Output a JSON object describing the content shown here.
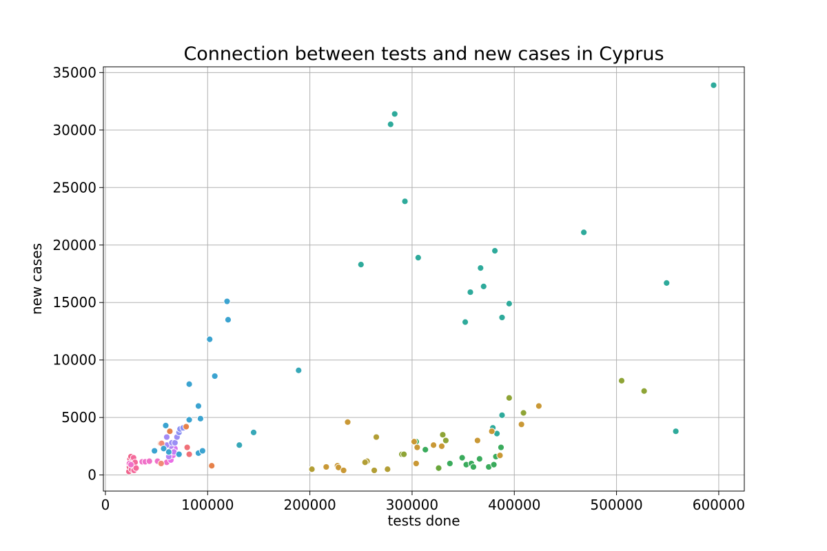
{
  "chart_data": {
    "type": "scatter",
    "title": "Connection between tests and new cases in Cyprus",
    "xlabel": "tests done",
    "ylabel": "new cases",
    "xlim": [
      -2000,
      625000
    ],
    "ylim": [
      -1400,
      35500
    ],
    "xticks": [
      0,
      100000,
      200000,
      300000,
      400000,
      500000,
      600000
    ],
    "xtick_labels": [
      "0",
      "100000",
      "200000",
      "300000",
      "400000",
      "500000",
      "600000"
    ],
    "yticks": [
      0,
      5000,
      10000,
      15000,
      20000,
      25000,
      30000,
      35000
    ],
    "ytick_labels": [
      "0",
      "5000",
      "10000",
      "15000",
      "20000",
      "25000",
      "30000",
      "35000"
    ],
    "grid": true,
    "points": [
      {
        "x": 23000,
        "y": 300,
        "color": "#f0648c"
      },
      {
        "x": 23500,
        "y": 700,
        "color": "#f0648c"
      },
      {
        "x": 24000,
        "y": 1000,
        "color": "#f0648c"
      },
      {
        "x": 24000,
        "y": 1400,
        "color": "#f0648c"
      },
      {
        "x": 25000,
        "y": 1600,
        "color": "#f0648c"
      },
      {
        "x": 25500,
        "y": 500,
        "color": "#f46a9b"
      },
      {
        "x": 26000,
        "y": 1200,
        "color": "#f46a9b"
      },
      {
        "x": 27000,
        "y": 800,
        "color": "#f46a9b"
      },
      {
        "x": 27500,
        "y": 1500,
        "color": "#f46a9b"
      },
      {
        "x": 28000,
        "y": 400,
        "color": "#f46a9b"
      },
      {
        "x": 29000,
        "y": 1100,
        "color": "#f46a9b"
      },
      {
        "x": 30000,
        "y": 600,
        "color": "#f46a9b"
      },
      {
        "x": 23500,
        "y": 1000,
        "color": "#f070c8"
      },
      {
        "x": 25000,
        "y": 900,
        "color": "#f070c8"
      },
      {
        "x": 36000,
        "y": 1150,
        "color": "#f070c8"
      },
      {
        "x": 39000,
        "y": 1150,
        "color": "#f070c8"
      },
      {
        "x": 43000,
        "y": 1200,
        "color": "#f070c8"
      },
      {
        "x": 51000,
        "y": 1200,
        "color": "#f070c8"
      },
      {
        "x": 55000,
        "y": 1000,
        "color": "#f070c8"
      },
      {
        "x": 60000,
        "y": 1100,
        "color": "#f070c8"
      },
      {
        "x": 64000,
        "y": 1300,
        "color": "#e96ee6"
      },
      {
        "x": 66000,
        "y": 1700,
        "color": "#e96ee6"
      },
      {
        "x": 68000,
        "y": 2300,
        "color": "#d575f0"
      },
      {
        "x": 67000,
        "y": 2000,
        "color": "#c57cf2"
      },
      {
        "x": 64000,
        "y": 2500,
        "color": "#b383f4"
      },
      {
        "x": 62000,
        "y": 1600,
        "color": "#b383f4"
      },
      {
        "x": 60000,
        "y": 3300,
        "color": "#a38af5"
      },
      {
        "x": 60000,
        "y": 2600,
        "color": "#a38af5"
      },
      {
        "x": 65000,
        "y": 2800,
        "color": "#9a8ef5"
      },
      {
        "x": 68000,
        "y": 2800,
        "color": "#9a8ef5"
      },
      {
        "x": 70000,
        "y": 3300,
        "color": "#9a8ef5"
      },
      {
        "x": 72000,
        "y": 3700,
        "color": "#8d92f4"
      },
      {
        "x": 73000,
        "y": 4000,
        "color": "#8d92f4"
      },
      {
        "x": 76000,
        "y": 4100,
        "color": "#8d92f4"
      },
      {
        "x": 63000,
        "y": 3800,
        "color": "#e6814a"
      },
      {
        "x": 79000,
        "y": 4200,
        "color": "#e6814a"
      },
      {
        "x": 54000,
        "y": 2750,
        "color": "#e6814a"
      },
      {
        "x": 55000,
        "y": 2750,
        "color": "#f08a76"
      },
      {
        "x": 54500,
        "y": 1000,
        "color": "#f08a76"
      },
      {
        "x": 80000,
        "y": 2400,
        "color": "#f07078"
      },
      {
        "x": 82000,
        "y": 1800,
        "color": "#f07078"
      },
      {
        "x": 104000,
        "y": 800,
        "color": "#e6814a"
      },
      {
        "x": 59000,
        "y": 4300,
        "color": "#3ba3d0"
      },
      {
        "x": 48000,
        "y": 2100,
        "color": "#3ba3d0"
      },
      {
        "x": 57000,
        "y": 2300,
        "color": "#3ba3d0"
      },
      {
        "x": 62000,
        "y": 2000,
        "color": "#3ba3d0"
      },
      {
        "x": 72000,
        "y": 1800,
        "color": "#3ba3d0"
      },
      {
        "x": 82000,
        "y": 4800,
        "color": "#3ba3d0"
      },
      {
        "x": 82000,
        "y": 7900,
        "color": "#3ba3d0"
      },
      {
        "x": 91000,
        "y": 6000,
        "color": "#3ba3d0"
      },
      {
        "x": 93000,
        "y": 4900,
        "color": "#3ba3d0"
      },
      {
        "x": 91000,
        "y": 1900,
        "color": "#3ba3d0"
      },
      {
        "x": 95000,
        "y": 2100,
        "color": "#3ba3d0"
      },
      {
        "x": 102000,
        "y": 11800,
        "color": "#3ba3d0"
      },
      {
        "x": 107000,
        "y": 8600,
        "color": "#3ba3d0"
      },
      {
        "x": 119000,
        "y": 15100,
        "color": "#3ba3d0"
      },
      {
        "x": 120000,
        "y": 13500,
        "color": "#3ba3d0"
      },
      {
        "x": 131000,
        "y": 2600,
        "color": "#37a8b8"
      },
      {
        "x": 145000,
        "y": 3700,
        "color": "#37a8b8"
      },
      {
        "x": 189000,
        "y": 9100,
        "color": "#37a8b8"
      },
      {
        "x": 250000,
        "y": 18300,
        "color": "#2eaa9b"
      },
      {
        "x": 279000,
        "y": 30500,
        "color": "#2eaa9b"
      },
      {
        "x": 283000,
        "y": 31400,
        "color": "#2eaa9b"
      },
      {
        "x": 293000,
        "y": 23800,
        "color": "#2eaa9b"
      },
      {
        "x": 306000,
        "y": 18900,
        "color": "#2eaa9b"
      },
      {
        "x": 352000,
        "y": 13300,
        "color": "#2eaa9b"
      },
      {
        "x": 357000,
        "y": 15900,
        "color": "#2eaa9b"
      },
      {
        "x": 367000,
        "y": 18000,
        "color": "#2eaa9b"
      },
      {
        "x": 370000,
        "y": 16400,
        "color": "#2eaa9b"
      },
      {
        "x": 381000,
        "y": 19500,
        "color": "#2eaa9b"
      },
      {
        "x": 388000,
        "y": 13700,
        "color": "#2eaa9b"
      },
      {
        "x": 395000,
        "y": 14900,
        "color": "#2eaa9b"
      },
      {
        "x": 468000,
        "y": 21100,
        "color": "#2eaa9b"
      },
      {
        "x": 549000,
        "y": 16700,
        "color": "#2eaa9b"
      },
      {
        "x": 595000,
        "y": 33900,
        "color": "#2eaa9b"
      },
      {
        "x": 379000,
        "y": 4100,
        "color": "#2eaa9b"
      },
      {
        "x": 383000,
        "y": 3600,
        "color": "#2eaa9b"
      },
      {
        "x": 388000,
        "y": 5200,
        "color": "#2eaa9b"
      },
      {
        "x": 558000,
        "y": 3800,
        "color": "#2eaa9b"
      },
      {
        "x": 304000,
        "y": 2900,
        "color": "#3aab5c"
      },
      {
        "x": 313000,
        "y": 2200,
        "color": "#3aab5c"
      },
      {
        "x": 337000,
        "y": 1000,
        "color": "#3aab5c"
      },
      {
        "x": 349000,
        "y": 1500,
        "color": "#3aab5c"
      },
      {
        "x": 353000,
        "y": 900,
        "color": "#3aab5c"
      },
      {
        "x": 358000,
        "y": 1000,
        "color": "#3aab5c"
      },
      {
        "x": 360000,
        "y": 700,
        "color": "#3aab5c"
      },
      {
        "x": 366000,
        "y": 1400,
        "color": "#3aab5c"
      },
      {
        "x": 375000,
        "y": 700,
        "color": "#3aab5c"
      },
      {
        "x": 380000,
        "y": 900,
        "color": "#3aab5c"
      },
      {
        "x": 382000,
        "y": 1600,
        "color": "#3aab5c"
      },
      {
        "x": 387000,
        "y": 2400,
        "color": "#3aab5c"
      },
      {
        "x": 326000,
        "y": 600,
        "color": "#69a63a"
      },
      {
        "x": 290000,
        "y": 1800,
        "color": "#8ea436"
      },
      {
        "x": 292000,
        "y": 1800,
        "color": "#8ea436"
      },
      {
        "x": 330000,
        "y": 3500,
        "color": "#8ea436"
      },
      {
        "x": 333000,
        "y": 3000,
        "color": "#8ea436"
      },
      {
        "x": 395000,
        "y": 6700,
        "color": "#8ea436"
      },
      {
        "x": 409000,
        "y": 5400,
        "color": "#8ea436"
      },
      {
        "x": 505000,
        "y": 8200,
        "color": "#8ea436"
      },
      {
        "x": 527000,
        "y": 7300,
        "color": "#8ea436"
      },
      {
        "x": 256000,
        "y": 1200,
        "color": "#b29e35"
      },
      {
        "x": 254000,
        "y": 1100,
        "color": "#b29e35"
      },
      {
        "x": 265000,
        "y": 3300,
        "color": "#b29e35"
      },
      {
        "x": 263000,
        "y": 400,
        "color": "#b29e35"
      },
      {
        "x": 276000,
        "y": 500,
        "color": "#b29e35"
      },
      {
        "x": 202000,
        "y": 500,
        "color": "#b29e35"
      },
      {
        "x": 237000,
        "y": 4600,
        "color": "#c99835"
      },
      {
        "x": 216000,
        "y": 700,
        "color": "#c99835"
      },
      {
        "x": 227000,
        "y": 800,
        "color": "#c99835"
      },
      {
        "x": 228000,
        "y": 650,
        "color": "#c99835"
      },
      {
        "x": 233000,
        "y": 400,
        "color": "#c99835"
      },
      {
        "x": 302000,
        "y": 2900,
        "color": "#c99835"
      },
      {
        "x": 305000,
        "y": 2400,
        "color": "#c99835"
      },
      {
        "x": 304000,
        "y": 1000,
        "color": "#c99835"
      },
      {
        "x": 321000,
        "y": 2600,
        "color": "#c99835"
      },
      {
        "x": 329000,
        "y": 2500,
        "color": "#c99835"
      },
      {
        "x": 364000,
        "y": 3000,
        "color": "#c99835"
      },
      {
        "x": 378000,
        "y": 3800,
        "color": "#c99835"
      },
      {
        "x": 386000,
        "y": 1700,
        "color": "#c99835"
      },
      {
        "x": 407000,
        "y": 4400,
        "color": "#c99835"
      },
      {
        "x": 424000,
        "y": 6000,
        "color": "#c99835"
      }
    ]
  }
}
